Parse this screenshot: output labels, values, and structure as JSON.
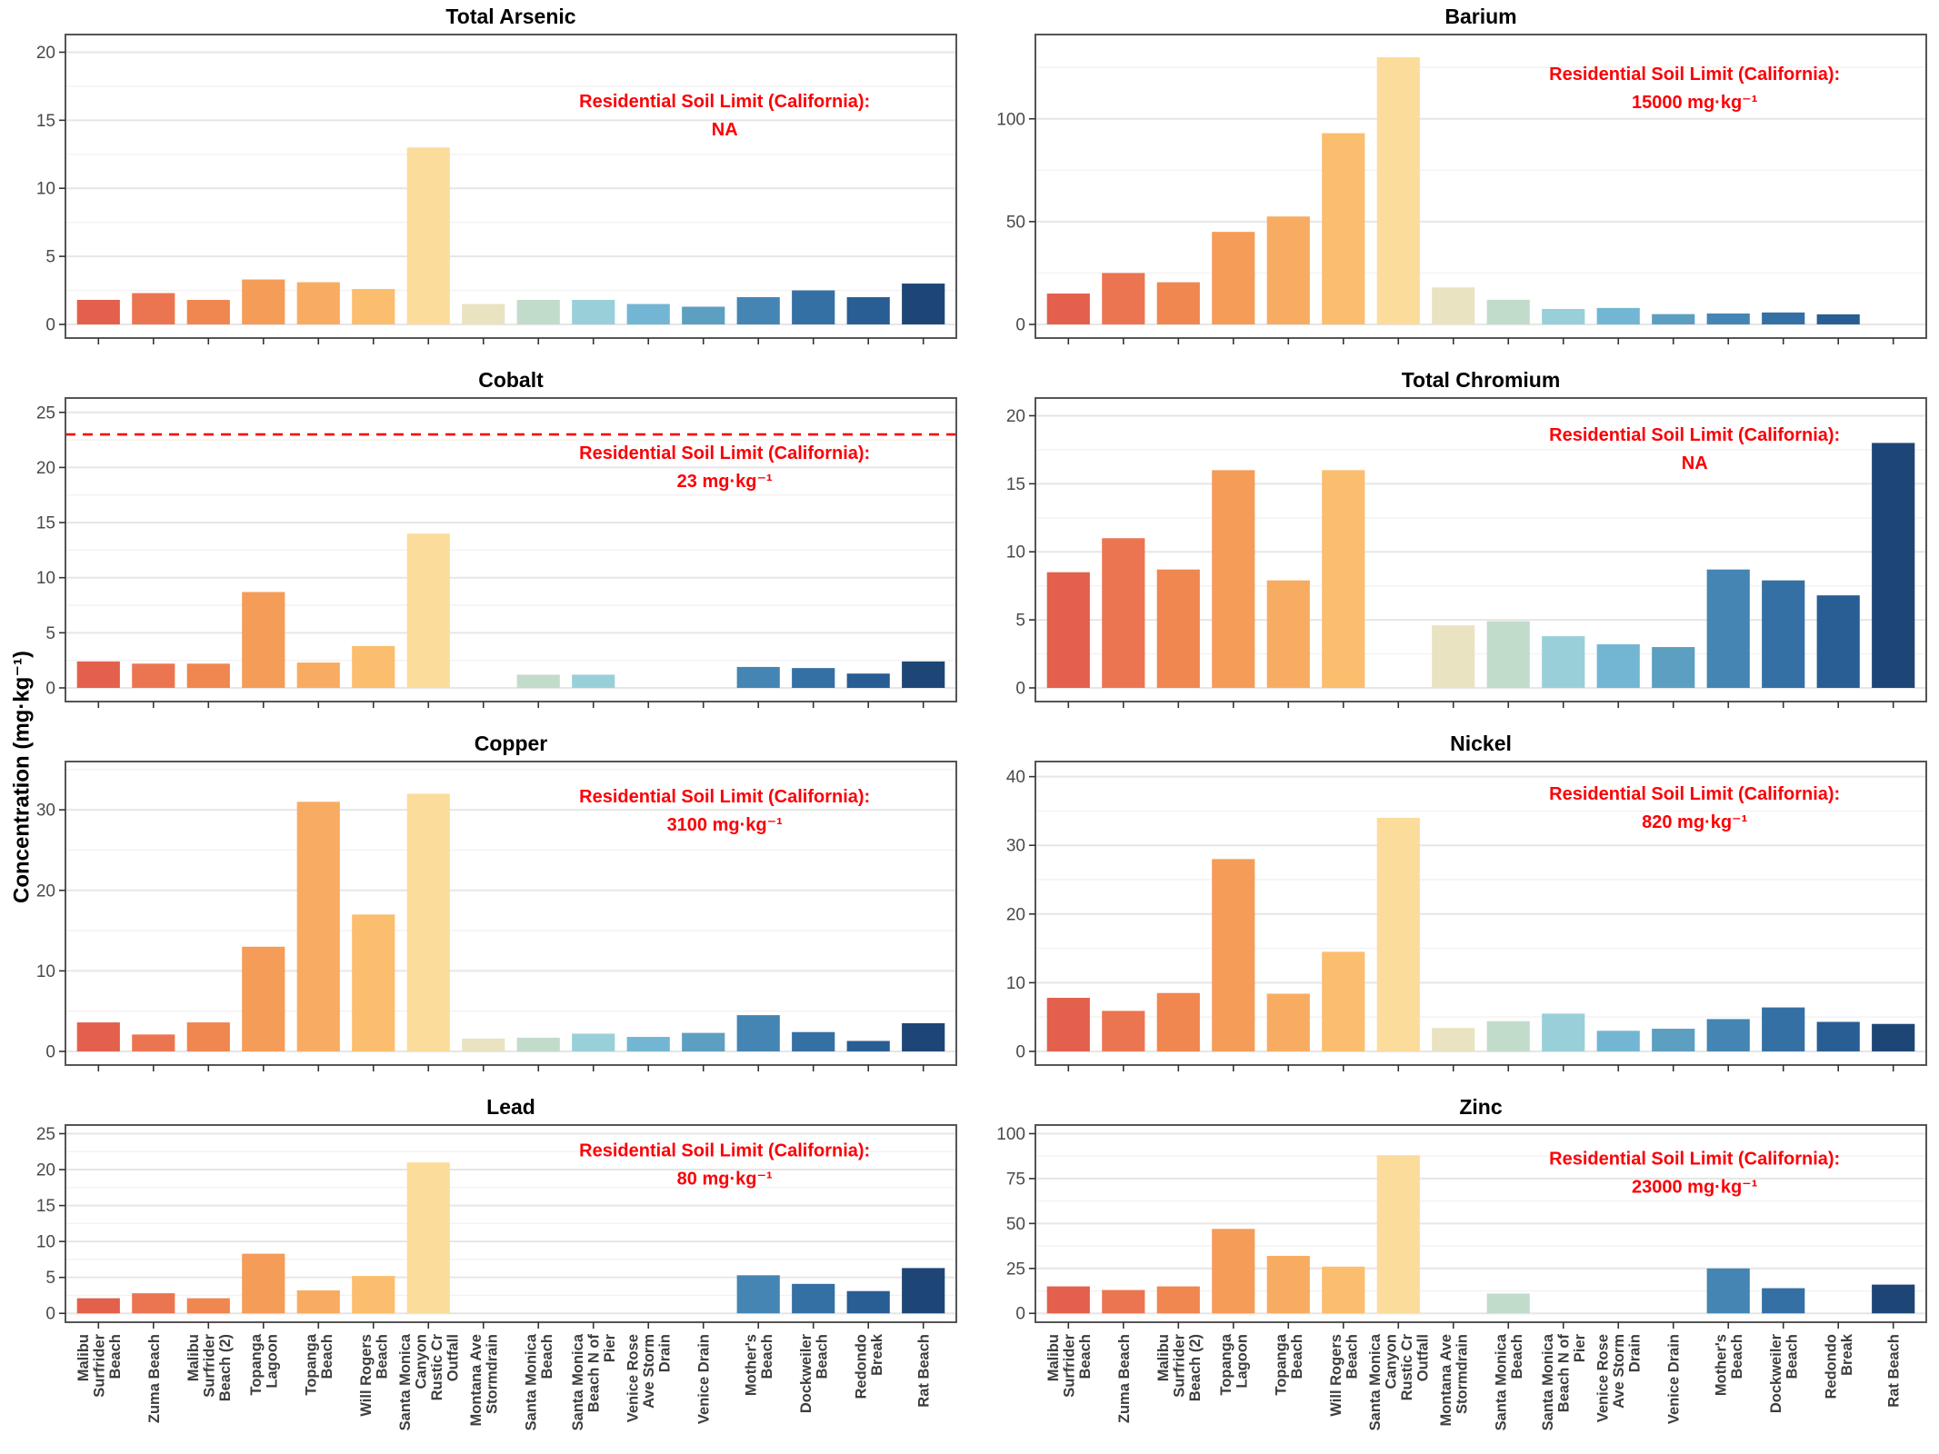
{
  "figure": {
    "annotation_heading": "Residential Soil Limit (California):",
    "annotation_color": "#FB0006",
    "axis_text_color": "#4a4a4a",
    "x_label_color": "#3d3d3d",
    "panel_border_color": "#555555",
    "bar_colors": [
      "#E2604C",
      "#EC7551",
      "#F08650",
      "#F49C58",
      "#F8AC62",
      "#FBBE6E",
      "#FCDC9B",
      "#EAE3C2",
      "#C2DCCB",
      "#99CFD9",
      "#72B6D3",
      "#5C9FC1",
      "#4485B3",
      "#3470A4",
      "#295E94",
      "#1D4677"
    ]
  },
  "chart_data": {
    "type": "bar",
    "ylabel": "Concentration (mg·kg⁻¹)",
    "legend": "none",
    "grid": "horizontal major + minor, light gray",
    "categories": [
      "Malibu Surfrider Beach",
      "Zuma Beach",
      "Malibu Surfrider Beach (2)",
      "Topanga Lagoon",
      "Topanga Beach",
      "Will Rogers Beach",
      "Santa Monica Canyon Rustic Cr Outfall",
      "Montana Ave Stormdrain",
      "Santa Monica Beach",
      "Santa Monica Beach N of Pier",
      "Venice Rose Ave Storm Drain",
      "Venice Drain",
      "Mother's Beach",
      "Dockweiler Beach",
      "Redondo Break",
      "Rat Beach"
    ],
    "category_label_lines": [
      [
        "Malibu",
        "Surfrider",
        "Beach"
      ],
      [
        "Zuma Beach"
      ],
      [
        "Malibu",
        "Surfrider",
        "Beach (2)"
      ],
      [
        "Topanga",
        "Lagoon"
      ],
      [
        "Topanga",
        "Beach"
      ],
      [
        "Will Rogers",
        "Beach"
      ],
      [
        "Santa Monica",
        "Canyon",
        "Rustic Cr",
        "Outfall"
      ],
      [
        "Montana Ave",
        "Stormdrain"
      ],
      [
        "Santa Monica",
        "Beach"
      ],
      [
        "Santa Monica",
        "Beach N of",
        "Pier"
      ],
      [
        "Venice Rose",
        "Ave Storm",
        "Drain"
      ],
      [
        "Venice Drain"
      ],
      [
        "Mother's",
        "Beach"
      ],
      [
        "Dockweiler",
        "Beach"
      ],
      [
        "Redondo",
        "Break"
      ],
      [
        "Rat Beach"
      ]
    ],
    "panels": [
      {
        "title": "Total Arsenic",
        "limit_value": "NA",
        "yticks": [
          0,
          5,
          10,
          15,
          20
        ],
        "ytop": 21.3,
        "ref_line": null,
        "ann_y_frac": 0.24,
        "values": [
          1.8,
          2.3,
          1.8,
          3.3,
          3.1,
          2.6,
          13,
          1.5,
          1.8,
          1.8,
          1.5,
          1.3,
          2.0,
          2.5,
          2.0,
          3.0
        ]
      },
      {
        "title": "Barium",
        "limit_value": "15000 mg·kg⁻¹",
        "yticks": [
          0,
          50,
          100
        ],
        "ytop": 141,
        "ref_line": null,
        "ann_y_frac": 0.15,
        "values": [
          15,
          25,
          20.5,
          45,
          52.5,
          93,
          130,
          18,
          12,
          7.5,
          8,
          5,
          5.3,
          5.8,
          4.9,
          null
        ]
      },
      {
        "title": "Cobalt",
        "limit_value": "23 mg·kg⁻¹",
        "yticks": [
          0,
          5,
          10,
          15,
          20,
          25
        ],
        "ytop": 26.3,
        "ref_line": 23,
        "ann_y_frac": 0.2,
        "values": [
          2.4,
          2.2,
          2.2,
          8.7,
          2.3,
          3.8,
          14,
          null,
          1.2,
          1.2,
          null,
          null,
          1.9,
          1.8,
          1.3,
          2.4
        ]
      },
      {
        "title": "Total Chromium",
        "limit_value": "NA",
        "yticks": [
          0,
          5,
          10,
          15,
          20
        ],
        "ytop": 21.3,
        "ref_line": null,
        "ann_y_frac": 0.14,
        "values": [
          8.5,
          11,
          8.7,
          16,
          7.9,
          16,
          null,
          4.6,
          4.9,
          3.8,
          3.2,
          3.0,
          8.7,
          7.9,
          6.8,
          18
        ]
      },
      {
        "title": "Copper",
        "limit_value": "3100 mg·kg⁻¹",
        "yticks": [
          0,
          10,
          20,
          30
        ],
        "ytop": 36,
        "ref_line": null,
        "ann_y_frac": 0.135,
        "values": [
          3.6,
          2.1,
          3.6,
          13,
          31,
          17,
          32,
          1.6,
          1.7,
          2.2,
          1.8,
          2.3,
          4.5,
          2.4,
          1.3,
          3.5
        ]
      },
      {
        "title": "Nickel",
        "limit_value": "820 mg·kg⁻¹",
        "yticks": [
          0,
          10,
          20,
          30,
          40
        ],
        "ytop": 42.2,
        "ref_line": null,
        "ann_y_frac": 0.125,
        "values": [
          7.8,
          5.9,
          8.5,
          28,
          8.4,
          14.5,
          34,
          3.4,
          4.4,
          5.5,
          3.0,
          3.3,
          4.7,
          6.4,
          4.3,
          4.0
        ]
      },
      {
        "title": "Lead",
        "limit_value": "80 mg·kg⁻¹",
        "yticks": [
          0,
          5,
          10,
          15,
          20,
          25
        ],
        "ytop": 26.2,
        "ref_line": null,
        "ann_y_frac": 0.16,
        "values": [
          2.1,
          2.8,
          2.1,
          8.3,
          3.2,
          5.2,
          21,
          null,
          null,
          null,
          null,
          null,
          5.3,
          4.1,
          3.1,
          6.3
        ]
      },
      {
        "title": "Zinc",
        "limit_value": "23000 mg·kg⁻¹",
        "yticks": [
          0,
          25,
          50,
          75,
          100
        ],
        "ytop": 104.8,
        "ref_line": null,
        "ann_y_frac": 0.2,
        "values": [
          15,
          13,
          15,
          47,
          32,
          26,
          88,
          null,
          11,
          null,
          null,
          null,
          25,
          14,
          null,
          16
        ]
      }
    ]
  }
}
